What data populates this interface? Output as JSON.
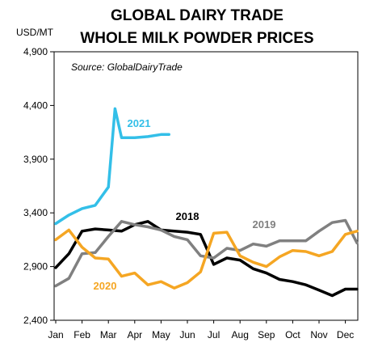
{
  "chart_data": {
    "type": "line",
    "title": [
      "GLOBAL DAIRY TRADE",
      "WHOLE MILK POWDER PRICES"
    ],
    "unit_label": "USD/MT",
    "source": "Source: GlobalDairyTrade",
    "xlabel": "",
    "ylabel": "",
    "x_ticks": [
      "Jan",
      "Feb",
      "Mar",
      "Apr",
      "May",
      "Jun",
      "Jul",
      "Aug",
      "Sep",
      "Oct",
      "Nov",
      "Dec"
    ],
    "y_ticks": [
      "4,900",
      "4,400",
      "3,900",
      "3,400",
      "2,900",
      "2,400"
    ],
    "y_tick_values": [
      4900,
      4400,
      3900,
      3400,
      2900,
      2400
    ],
    "ylim": [
      2400,
      4900
    ],
    "xlim": [
      1,
      12.2
    ],
    "grid": false,
    "series": [
      {
        "name": "2018",
        "color": "#000000",
        "x": [
          1,
          1.5,
          2,
          2.5,
          3,
          3.5,
          4,
          4.5,
          5,
          5.5,
          6,
          6.5,
          7,
          7.5,
          8,
          8.5,
          9,
          9.5,
          10,
          10.5,
          11,
          11.5,
          12,
          12.5
        ],
        "y": [
          2890,
          3020,
          3230,
          3250,
          3240,
          3230,
          3290,
          3320,
          3240,
          3230,
          3220,
          3200,
          2920,
          2980,
          2960,
          2880,
          2840,
          2780,
          2760,
          2730,
          2680,
          2630,
          2690,
          2690
        ]
      },
      {
        "name": "2019",
        "color": "#808080",
        "x": [
          1,
          1.5,
          2,
          2.5,
          3,
          3.5,
          4,
          4.5,
          5,
          5.5,
          6,
          6.5,
          7,
          7.5,
          8,
          8.5,
          9,
          9.5,
          10,
          10.5,
          11,
          11.5,
          12,
          12.5
        ],
        "y": [
          2720,
          2790,
          3020,
          3030,
          3180,
          3320,
          3290,
          3270,
          3240,
          3180,
          3150,
          3000,
          2980,
          3070,
          3050,
          3110,
          3090,
          3140,
          3140,
          3140,
          3230,
          3310,
          3330,
          3120
        ]
      },
      {
        "name": "2020",
        "color": "#f5a623",
        "x": [
          1,
          1.5,
          2,
          2.5,
          3,
          3.5,
          4,
          4.5,
          5,
          5.5,
          6,
          6.5,
          7,
          7.5,
          8,
          8.5,
          9,
          9.5,
          10,
          10.5,
          11,
          11.5,
          12,
          12.5
        ],
        "y": [
          3150,
          3240,
          3080,
          2980,
          2970,
          2810,
          2840,
          2730,
          2760,
          2700,
          2750,
          2850,
          3210,
          3220,
          3000,
          2940,
          2900,
          2990,
          3050,
          3040,
          3000,
          3040,
          3200,
          3230
        ]
      },
      {
        "name": "2021",
        "color": "#33bfe8",
        "x": [
          1,
          1.5,
          2,
          2.5,
          3,
          3.25,
          3.5,
          4,
          4.5,
          5,
          5.3
        ],
        "y": [
          3300,
          3380,
          3440,
          3470,
          3640,
          4370,
          4100,
          4100,
          4110,
          4130,
          4130
        ]
      }
    ]
  }
}
